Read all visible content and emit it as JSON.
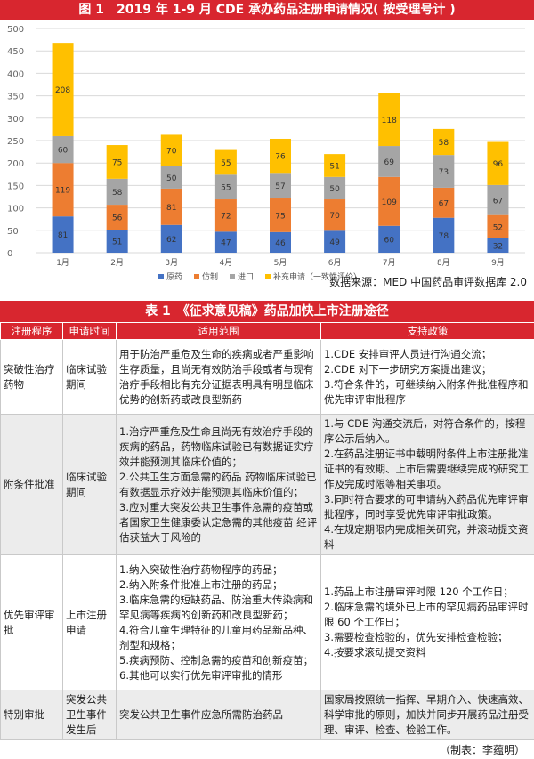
{
  "figure_title": "图 1　2019 年 1-9 月 CDE 承办药品注册申请情况( 按受理号计 )",
  "source_note": "数据来源：MED 中国药品审评数据库 2.0",
  "table_title": "表 1　《征求意见稿》药品加快上市注册途径",
  "credit": "（制表：李蕴明）",
  "chart_data": {
    "type": "bar",
    "stacked": true,
    "categories": [
      "1月",
      "2月",
      "3月",
      "4月",
      "5月",
      "6月",
      "7月",
      "8月",
      "9月"
    ],
    "series": [
      {
        "name": "原药",
        "color": "#4472c4",
        "values": [
          81,
          51,
          62,
          47,
          46,
          49,
          60,
          78,
          32
        ]
      },
      {
        "name": "仿制",
        "color": "#ed7d31",
        "values": [
          119,
          56,
          81,
          72,
          75,
          70,
          109,
          67,
          52
        ]
      },
      {
        "name": "进口",
        "color": "#a5a5a5",
        "values": [
          60,
          58,
          50,
          55,
          57,
          50,
          69,
          73,
          67
        ]
      },
      {
        "name": "补充申请（一致性评价）",
        "color": "#ffc000",
        "values": [
          208,
          75,
          70,
          55,
          76,
          51,
          118,
          58,
          96
        ]
      }
    ],
    "ylim": [
      0,
      500
    ],
    "yticks": [
      0,
      50,
      100,
      150,
      200,
      250,
      300,
      350,
      400,
      450,
      500
    ],
    "grid": true,
    "legend": "bottom"
  },
  "table": {
    "headers": [
      "注册程序",
      "申请时间",
      "适用范围",
      "支持政策"
    ],
    "rows": [
      {
        "program": "突破性治疗药物",
        "time": "临床试验期间",
        "scope": [
          "用于防治严重危及生命的疾病或者严重影响生存质量，且尚无有效防治手段或者与现有治疗手段相比有充分证据表明具有明显临床优势的创新药或改良型新药"
        ],
        "policy": [
          "1.CDE 安排审评人员进行沟通交流；",
          "2.CDE 对下一步研究方案提出建议；",
          "3.符合条件的，可继续纳入附条件批准程序和优先审评审批程序"
        ]
      },
      {
        "program": "附条件批准",
        "time": "临床试验期间",
        "scope": [
          "1.治疗严重危及生命且尚无有效治疗手段的疾病的药品，药物临床试验已有数据证实疗效并能预测其临床价值的；",
          "2.公共卫生方面急需的药品 药物临床试验已有数据显示疗效并能预测其临床价值的；",
          "3.应对重大突发公共卫生事件急需的疫苗或者国家卫生健康委认定急需的其他疫苗 经评估获益大于风险的"
        ],
        "policy": [
          "1.与 CDE 沟通交流后，对符合条件的，按程序公示后纳入。",
          "2.在药品注册证书中载明附条件上市注册批准证书的有效期、上市后需要继续完成的研究工作及完成时限等相关事项。",
          "3.同时符合要求的可申请纳入药品优先审评审批程序，同时享受优先审评审批政策。",
          "4.在规定期限内完成相关研究，并滚动提交资料"
        ]
      },
      {
        "program": "优先审评审批",
        "time": "上市注册申请",
        "scope": [
          "1.纳入突破性治疗药物程序的药品；",
          "2.纳入附条件批准上市注册的药品；",
          "3.临床急需的短缺药品、防治重大传染病和罕见病等疾病的创新药和改良型新药；",
          "4.符合儿童生理特征的儿童用药品新品种、剂型和规格；",
          "5.疾病预防、控制急需的疫苗和创新疫苗；",
          "6.其他可以实行优先审评审批的情形"
        ],
        "policy": [
          "1.药品上市注册审评时限 120 个工作日；",
          "2.临床急需的境外已上市的罕见病药品审评时限 60 个工作日；",
          "3.需要检查检验的，优先安排检查检验；",
          "4.按要求滚动提交资料"
        ]
      },
      {
        "program": "特别审批",
        "time": "突发公共卫生事件发生后",
        "scope": [
          "突发公共卫生事件应急所需防治药品"
        ],
        "policy": [
          "国家局按照统一指挥、早期介入、快速高效、科学审批的原则，加快并同步开展药品注册受理、审评、检查、检验工作。"
        ]
      }
    ]
  }
}
